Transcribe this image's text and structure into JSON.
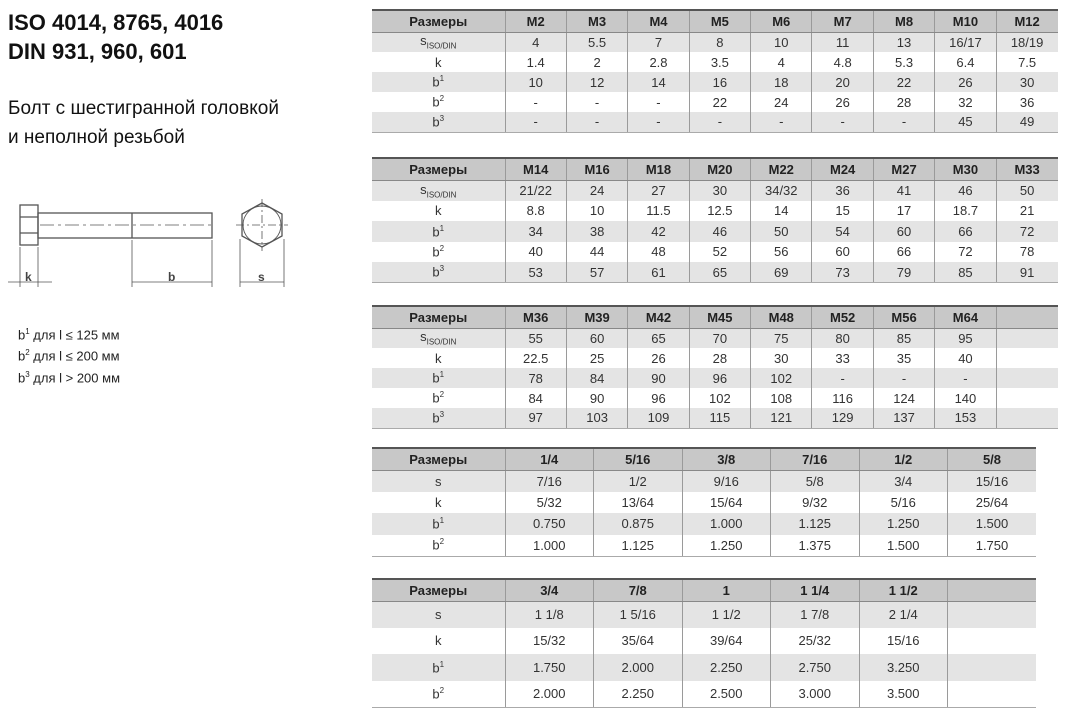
{
  "title": [
    "ISO 4014, 8765, 4016",
    "DIN 931, 960, 601"
  ],
  "subtitle": [
    "Болт с шестигранной головкой",
    "и неполной резьбой"
  ],
  "drawing": {
    "labels": {
      "k": "k",
      "b": "b",
      "s": "s"
    }
  },
  "notes": [
    {
      "base": "b",
      "sup": "1",
      "text": " для l ≤ 125 мм"
    },
    {
      "base": "b",
      "sup": "2",
      "text": " для l ≤ 200 мм"
    },
    {
      "base": "b",
      "sup": "3",
      "text": " для l > 200 мм"
    }
  ],
  "tables": [
    {
      "header": [
        "Размеры",
        "M2",
        "M3",
        "M4",
        "M5",
        "M6",
        "M7",
        "M8",
        "M10",
        "M12"
      ],
      "rows": [
        {
          "label": "s",
          "sub": "ISO/DIN",
          "values": [
            "4",
            "5.5",
            "7",
            "8",
            "10",
            "11",
            "13",
            "16/17",
            "18/19"
          ]
        },
        {
          "label": "k",
          "values": [
            "1.4",
            "2",
            "2.8",
            "3.5",
            "4",
            "4.8",
            "5.3",
            "6.4",
            "7.5"
          ]
        },
        {
          "label": "b",
          "sup": "1",
          "values": [
            "10",
            "12",
            "14",
            "16",
            "18",
            "20",
            "22",
            "26",
            "30"
          ]
        },
        {
          "label": "b",
          "sup": "2",
          "values": [
            "-",
            "-",
            "-",
            "22",
            "24",
            "26",
            "28",
            "32",
            "36"
          ]
        },
        {
          "label": "b",
          "sup": "3",
          "values": [
            "-",
            "-",
            "-",
            "-",
            "-",
            "-",
            "-",
            "45",
            "49"
          ]
        }
      ]
    },
    {
      "header": [
        "Размеры",
        "M14",
        "M16",
        "M18",
        "M20",
        "M22",
        "M24",
        "M27",
        "M30",
        "M33"
      ],
      "rows": [
        {
          "label": "s",
          "sub": "ISO/DIN",
          "values": [
            "21/22",
            "24",
            "27",
            "30",
            "34/32",
            "36",
            "41",
            "46",
            "50"
          ]
        },
        {
          "label": "k",
          "values": [
            "8.8",
            "10",
            "11.5",
            "12.5",
            "14",
            "15",
            "17",
            "18.7",
            "21"
          ]
        },
        {
          "label": "b",
          "sup": "1",
          "values": [
            "34",
            "38",
            "42",
            "46",
            "50",
            "54",
            "60",
            "66",
            "72"
          ]
        },
        {
          "label": "b",
          "sup": "2",
          "values": [
            "40",
            "44",
            "48",
            "52",
            "56",
            "60",
            "66",
            "72",
            "78"
          ]
        },
        {
          "label": "b",
          "sup": "3",
          "values": [
            "53",
            "57",
            "61",
            "65",
            "69",
            "73",
            "79",
            "85",
            "91"
          ]
        }
      ]
    },
    {
      "header": [
        "Размеры",
        "M36",
        "M39",
        "M42",
        "M45",
        "M48",
        "M52",
        "M56",
        "M64",
        ""
      ],
      "rows": [
        {
          "label": "s",
          "sub": "ISO/DIN",
          "values": [
            "55",
            "60",
            "65",
            "70",
            "75",
            "80",
            "85",
            "95",
            ""
          ]
        },
        {
          "label": "k",
          "values": [
            "22.5",
            "25",
            "26",
            "28",
            "30",
            "33",
            "35",
            "40",
            ""
          ]
        },
        {
          "label": "b",
          "sup": "1",
          "values": [
            "78",
            "84",
            "90",
            "96",
            "102",
            "-",
            "-",
            "-",
            ""
          ]
        },
        {
          "label": "b",
          "sup": "2",
          "values": [
            "84",
            "90",
            "96",
            "102",
            "108",
            "116",
            "124",
            "140",
            ""
          ]
        },
        {
          "label": "b",
          "sup": "3",
          "values": [
            "97",
            "103",
            "109",
            "115",
            "121",
            "129",
            "137",
            "153",
            ""
          ]
        }
      ]
    },
    {
      "header": [
        "Размеры",
        "1/4",
        "5/16",
        "3/8",
        "7/16",
        "1/2",
        "5/8"
      ],
      "rows": [
        {
          "label": "s",
          "values": [
            "7/16",
            "1/2",
            "9/16",
            "5/8",
            "3/4",
            "15/16"
          ]
        },
        {
          "label": "k",
          "values": [
            "5/32",
            "13/64",
            "15/64",
            "9/32",
            "5/16",
            "25/64"
          ]
        },
        {
          "label": "b",
          "sup": "1",
          "values": [
            "0.750",
            "0.875",
            "1.000",
            "1.125",
            "1.250",
            "1.500"
          ]
        },
        {
          "label": "b",
          "sup": "2",
          "values": [
            "1.000",
            "1.125",
            "1.250",
            "1.375",
            "1.500",
            "1.750"
          ]
        }
      ]
    },
    {
      "header": [
        "Размеры",
        "3/4",
        "7/8",
        "1",
        "1 1/4",
        "1 1/2",
        ""
      ],
      "rows": [
        {
          "label": "s",
          "values": [
            "1 1/8",
            "1 5/16",
            "1 1/2",
            "1 7/8",
            "2 1/4",
            ""
          ]
        },
        {
          "label": "k",
          "values": [
            "15/32",
            "35/64",
            "39/64",
            "25/32",
            "15/16",
            ""
          ]
        },
        {
          "label": "b",
          "sup": "1",
          "values": [
            "1.750",
            "2.000",
            "2.250",
            "2.750",
            "3.250",
            ""
          ]
        },
        {
          "label": "b",
          "sup": "2",
          "values": [
            "2.000",
            "2.250",
            "2.500",
            "3.000",
            "3.500",
            ""
          ]
        }
      ]
    }
  ]
}
